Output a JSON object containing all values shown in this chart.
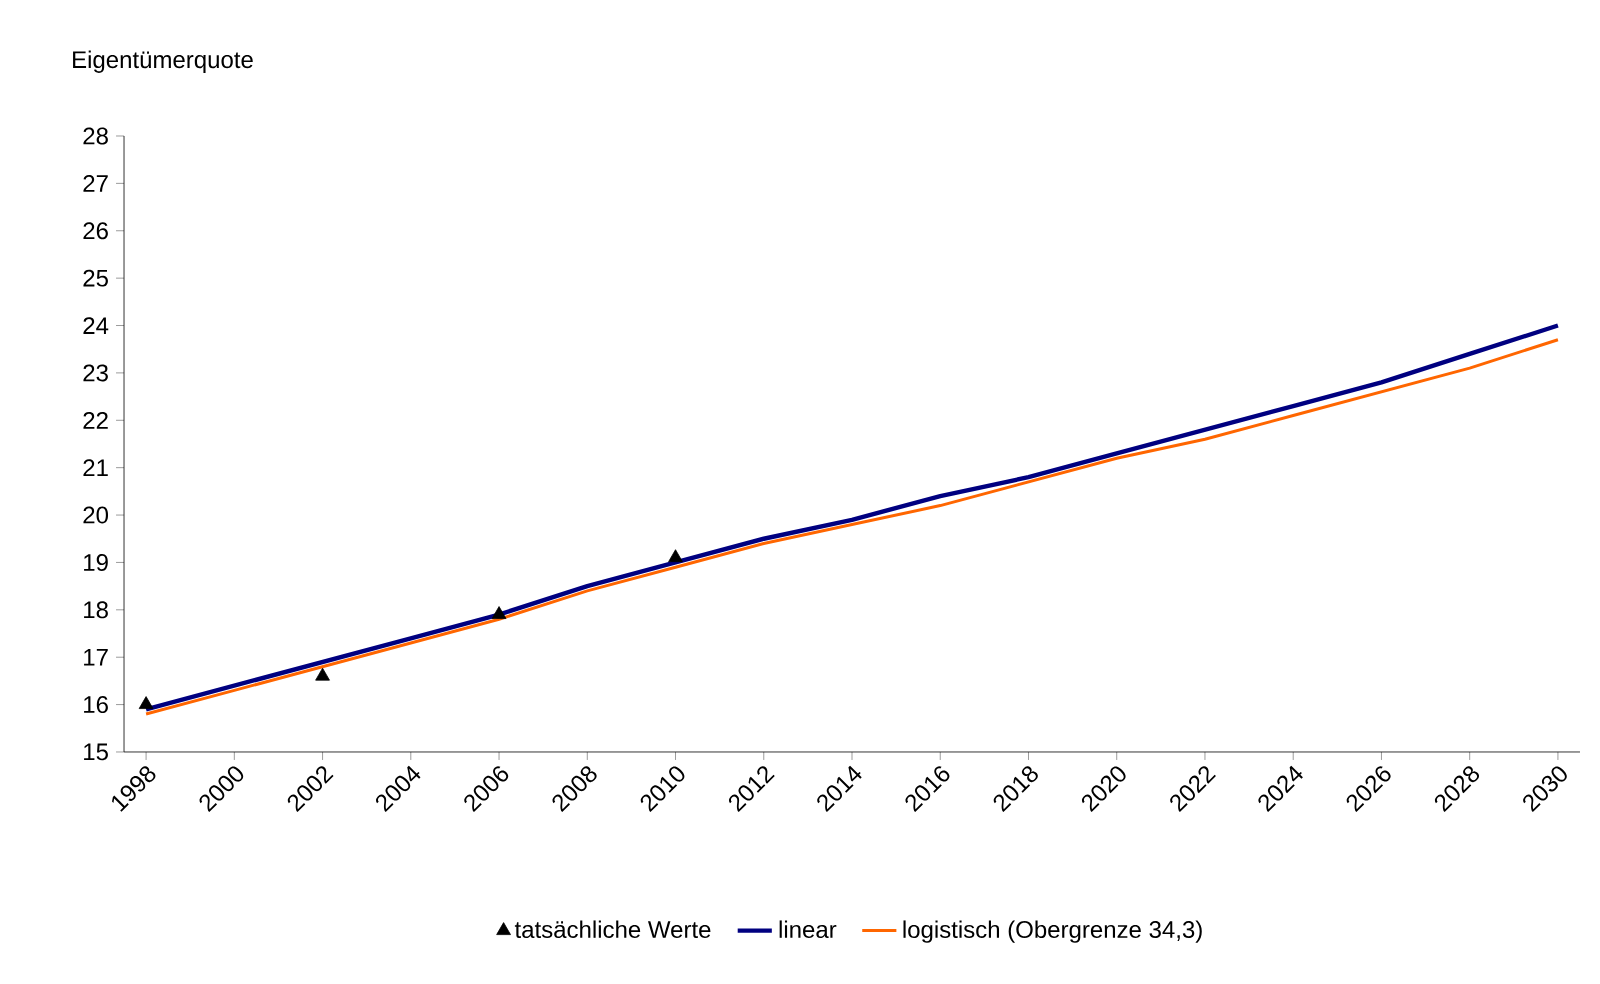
{
  "chart_data": {
    "type": "line",
    "ylabel": "Eigentümerquote",
    "xlim": [
      1997.5,
      2030.5
    ],
    "xticks": [
      1998,
      2000,
      2002,
      2004,
      2006,
      2008,
      2010,
      2012,
      2014,
      2016,
      2018,
      2020,
      2022,
      2024,
      2026,
      2028,
      2030
    ],
    "ylim": [
      15,
      28
    ],
    "yticks": [
      15,
      16,
      17,
      18,
      19,
      20,
      21,
      22,
      23,
      24,
      25,
      26,
      27,
      28
    ],
    "grid": false,
    "legend": "bottom",
    "series": [
      {
        "name": "tatsächliche Werte",
        "type": "scatter",
        "marker": "triangle",
        "color": "#000000",
        "x": [
          1998,
          2002,
          2006,
          2010
        ],
        "values": [
          16.0,
          16.6,
          17.9,
          19.1
        ]
      },
      {
        "name": "linear",
        "type": "line",
        "marker": "none",
        "color": "#000080",
        "x": [
          1998,
          2000,
          2002,
          2004,
          2006,
          2008,
          2010,
          2012,
          2014,
          2016,
          2018,
          2020,
          2022,
          2024,
          2026,
          2028,
          2030
        ],
        "values": [
          15.9,
          16.4,
          16.9,
          17.4,
          17.9,
          18.5,
          19.0,
          19.5,
          19.9,
          20.4,
          20.8,
          21.3,
          21.8,
          22.3,
          22.8,
          23.4,
          24.0
        ]
      },
      {
        "name": "logistisch (Obergrenze 34,3)",
        "type": "line",
        "marker": "none",
        "color": "#ff6600",
        "x": [
          1998,
          2000,
          2002,
          2004,
          2006,
          2008,
          2010,
          2012,
          2014,
          2016,
          2018,
          2020,
          2022,
          2024,
          2026,
          2028,
          2030
        ],
        "values": [
          15.8,
          16.3,
          16.8,
          17.3,
          17.8,
          18.4,
          18.9,
          19.4,
          19.8,
          20.2,
          20.7,
          21.2,
          21.6,
          22.1,
          22.6,
          23.1,
          23.7
        ]
      }
    ]
  }
}
